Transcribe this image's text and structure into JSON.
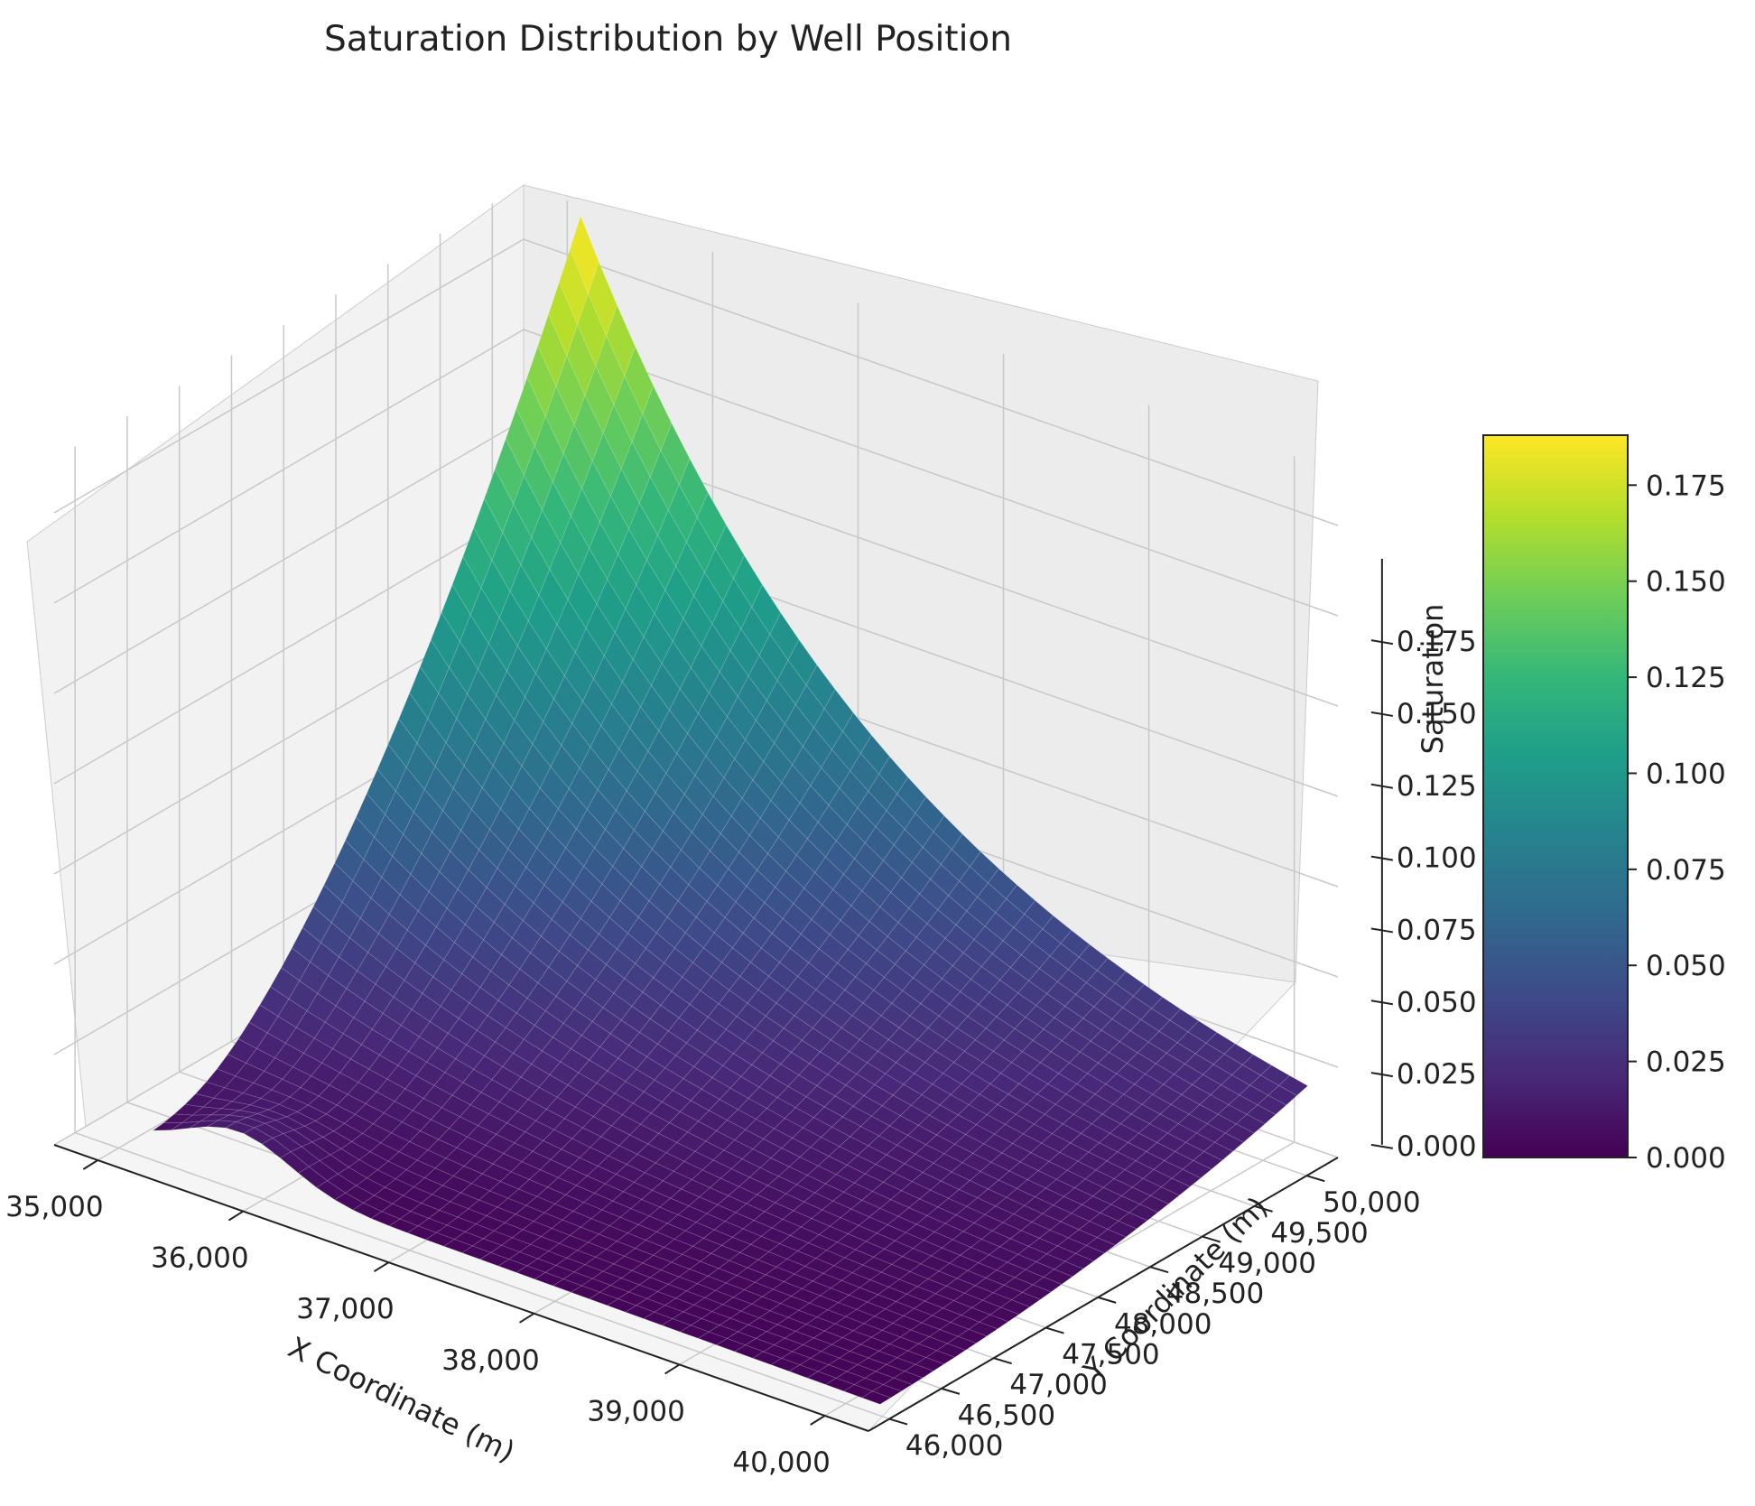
{
  "chart_data": {
    "type": "surface3d",
    "title": "Saturation Distribution by Well Position",
    "xlabel": "X Coordinate (m)",
    "ylabel": "Y Coordinate (m)",
    "zlabel": "Saturation",
    "x_ticks": [
      "35,000",
      "36,000",
      "37,000",
      "38,000",
      "39,000",
      "40,000"
    ],
    "x_tick_values": [
      35000,
      36000,
      37000,
      38000,
      39000,
      40000
    ],
    "y_ticks": [
      "46,000",
      "46,500",
      "47,000",
      "47,500",
      "48,000",
      "48,500",
      "49,000",
      "49,500",
      "50,000"
    ],
    "y_tick_values": [
      46000,
      46500,
      47000,
      47500,
      48000,
      48500,
      49000,
      49500,
      50000
    ],
    "z_ticks": [
      "0.000",
      "0.025",
      "0.050",
      "0.075",
      "0.100",
      "0.125",
      "0.150",
      "0.175"
    ],
    "z_tick_values": [
      0,
      0.025,
      0.05,
      0.075,
      0.1,
      0.125,
      0.15,
      0.175
    ],
    "xlim": [
      34700,
      40300
    ],
    "ylim": [
      45800,
      50300
    ],
    "zlim": [
      0,
      0.19
    ],
    "colorbar": {
      "colormap": "viridis",
      "range": [
        0,
        0.188
      ],
      "ticks": [
        "0.000",
        "0.025",
        "0.050",
        "0.075",
        "0.100",
        "0.125",
        "0.150",
        "0.175"
      ],
      "tick_values": [
        0,
        0.025,
        0.05,
        0.075,
        0.1,
        0.125,
        0.15,
        0.175
      ]
    },
    "surface": {
      "x_range": [
        35200,
        40200
      ],
      "y_range": [
        46050,
        50150
      ],
      "peak": {
        "x": 35200,
        "y": 50150,
        "z": 0.187
      },
      "corner_values": {
        "x_min_y_min": 0.006,
        "x_max_y_min": 0.002,
        "x_min_y_max": 0.187,
        "x_max_y_max": 0.004
      },
      "grid_cells": 40
    },
    "grid": true
  }
}
